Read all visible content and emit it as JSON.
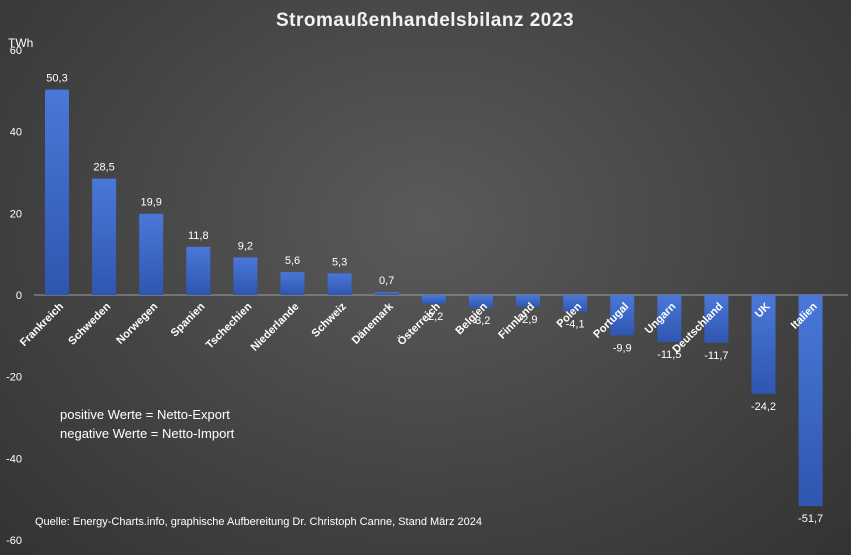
{
  "chart_data": {
    "type": "bar",
    "title": "Stromaußenhandelsbilanz 2023",
    "ylabel": "TWh",
    "xlabel": "",
    "ylim": [
      -60,
      60
    ],
    "yticks": [
      60,
      40,
      20,
      0,
      -20,
      -40,
      -60
    ],
    "categories": [
      "Frankreich",
      "Schweden",
      "Norwegen",
      "Spanien",
      "Tschechien",
      "Niederlande",
      "Schweiz",
      "Dänemark",
      "Österreich",
      "Belgien",
      "Finnland",
      "Polen",
      "Portugal",
      "Ungarn",
      "Deutschland",
      "UK",
      "Italien"
    ],
    "values": [
      50.3,
      28.5,
      19.9,
      11.8,
      9.2,
      5.6,
      5.3,
      0.7,
      -2.2,
      -3.2,
      -2.9,
      -4.1,
      -9.9,
      -11.5,
      -11.7,
      -24.2,
      -51.7
    ],
    "value_labels": [
      "50,3",
      "28,5",
      "19,9",
      "11,8",
      "9,2",
      "5,6",
      "5,3",
      "0,7",
      "-2,2",
      "-3,2",
      "-2,9",
      "-4,1",
      "-9,9",
      "-11,5",
      "-11,7",
      "-24,2",
      "-51,7"
    ],
    "grid": false,
    "legend": "none",
    "bar_color_top": "#4a78d8",
    "bar_color_bottom": "#2f56b0",
    "annotations": [
      "positive Werte = Netto-Export",
      "negative Werte = Netto-Import"
    ],
    "source": "Quelle: Energy-Charts.info, graphische Aufbereitung Dr. Christoph Canne, Stand März 2024"
  }
}
